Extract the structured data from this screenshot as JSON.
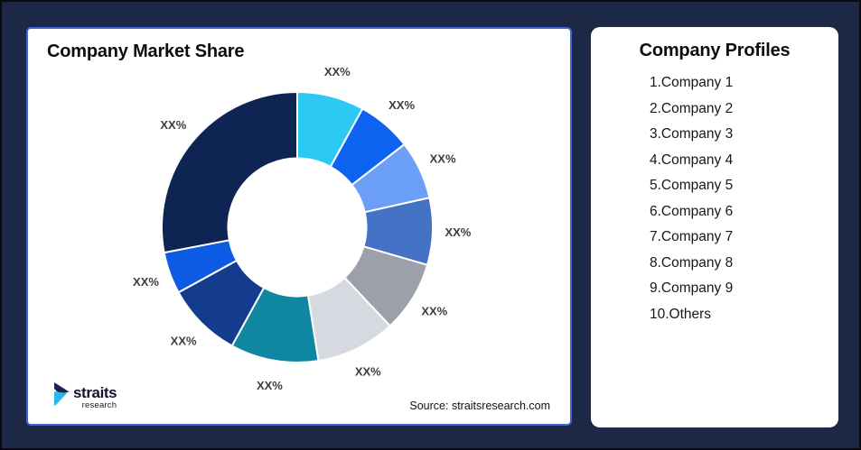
{
  "page": {
    "background_color": "#1d2847"
  },
  "left_panel": {
    "title": "Company Market Share",
    "source": "Source: straitsresearch.com",
    "logo": {
      "brand": "straits",
      "sub": "research",
      "color_navy": "#17264e",
      "color_cyan": "#29b9ea"
    }
  },
  "right_panel": {
    "title": "Company Profiles",
    "items": [
      "1.Company 1",
      "2.Company 2",
      "3.Company 3",
      "4.Company 4",
      "5.Company 5",
      "6.Company 6",
      "7.Company 7",
      "8.Company 8",
      "9.Company 9",
      "10.Others"
    ]
  },
  "chart_data": {
    "type": "pie",
    "subtype": "donut",
    "title": "Company Market Share",
    "labels": [
      "XX%",
      "XX%",
      "XX%",
      "XX%",
      "XX%",
      "XX%",
      "XX%",
      "XX%",
      "XX%",
      "XX%"
    ],
    "values": [
      8,
      6.5,
      7,
      8,
      8.5,
      9.5,
      10.5,
      9,
      5,
      28
    ],
    "colors": [
      "#2bc9f4",
      "#0b63f0",
      "#6ca0f7",
      "#4472c4",
      "#9ba0ab",
      "#d6d9df",
      "#0f87a1",
      "#133c8e",
      "#0d5be4",
      "#0e2453"
    ],
    "segment_names": [
      "Company 1",
      "Company 2",
      "Company 3",
      "Company 4",
      "Company 5",
      "Company 6",
      "Company 7",
      "Company 8",
      "Company 9",
      "Others"
    ],
    "start_angle_deg": 0,
    "clockwise": true,
    "outer_radius_px": 150,
    "inner_radius_ratio": 0.51,
    "label_color": "#3d3d3d",
    "legend": "none"
  }
}
